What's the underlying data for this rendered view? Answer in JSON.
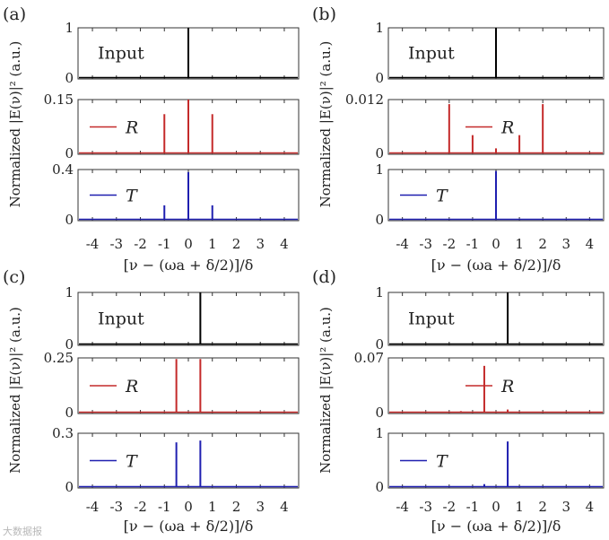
{
  "figure": {
    "y_axis_label": "Normalized |E(ν)|² (a.u.)",
    "x_axis_label": "[ν − (ωa + δ/2)]/δ",
    "x_ticks": [
      "-4",
      "-3",
      "-2",
      "-1",
      "0",
      "1",
      "2",
      "3",
      "4"
    ],
    "watermark": "大数据报",
    "colors": {
      "input": "#000000",
      "reflection": "#c42a2a",
      "transmission": "#1f1fb0"
    }
  },
  "chart_data": [
    {
      "type": "line",
      "panel": "(a)",
      "xlim": [
        -4.6,
        4.6
      ],
      "subplots": [
        {
          "name": "Input",
          "legend": "Input",
          "color": "#000000",
          "ylim": [
            0,
            1
          ],
          "yticks": [
            "1",
            "0"
          ],
          "peaks": [
            {
              "x": 0.0,
              "y": 1.0
            }
          ]
        },
        {
          "name": "R",
          "legend": "R",
          "color": "#c42a2a",
          "ylim": [
            0,
            0.15
          ],
          "yticks": [
            "0.15",
            "0"
          ],
          "peaks": [
            {
              "x": -2.0,
              "y": 0.004
            },
            {
              "x": -1.0,
              "y": 0.11
            },
            {
              "x": 0.0,
              "y": 0.15
            },
            {
              "x": 1.0,
              "y": 0.11
            },
            {
              "x": 2.0,
              "y": 0.004
            }
          ]
        },
        {
          "name": "T",
          "legend": "T",
          "color": "#1f1fb0",
          "ylim": [
            0,
            0.4
          ],
          "yticks": [
            "0.4",
            "0"
          ],
          "peaks": [
            {
              "x": -1.0,
              "y": 0.12
            },
            {
              "x": 0.0,
              "y": 0.38
            },
            {
              "x": 1.0,
              "y": 0.12
            }
          ]
        }
      ]
    },
    {
      "type": "line",
      "panel": "(b)",
      "xlim": [
        -4.6,
        4.6
      ],
      "subplots": [
        {
          "name": "Input",
          "legend": "Input",
          "color": "#000000",
          "ylim": [
            0,
            1
          ],
          "yticks": [
            "1",
            "0"
          ],
          "peaks": [
            {
              "x": 0.0,
              "y": 1.0
            }
          ]
        },
        {
          "name": "R",
          "legend": "R",
          "color": "#c42a2a",
          "ylim": [
            0,
            0.012
          ],
          "yticks": [
            "0.012",
            "0"
          ],
          "peaks": [
            {
              "x": -3.0,
              "y": 0.0005
            },
            {
              "x": -2.0,
              "y": 0.011
            },
            {
              "x": -1.0,
              "y": 0.0042
            },
            {
              "x": 0.0,
              "y": 0.0013
            },
            {
              "x": 1.0,
              "y": 0.0042
            },
            {
              "x": 2.0,
              "y": 0.011
            },
            {
              "x": 3.0,
              "y": 0.0005
            }
          ]
        },
        {
          "name": "T",
          "legend": "T",
          "color": "#1f1fb0",
          "ylim": [
            0,
            1
          ],
          "yticks": [
            "1",
            "0"
          ],
          "peaks": [
            {
              "x": 0.0,
              "y": 0.97
            }
          ]
        }
      ]
    },
    {
      "type": "line",
      "panel": "(c)",
      "xlim": [
        -4.6,
        4.6
      ],
      "subplots": [
        {
          "name": "Input",
          "legend": "Input",
          "color": "#000000",
          "ylim": [
            0,
            1
          ],
          "yticks": [
            "1",
            "0"
          ],
          "peaks": [
            {
              "x": 0.5,
              "y": 1.0
            }
          ]
        },
        {
          "name": "R",
          "legend": "R",
          "color": "#c42a2a",
          "ylim": [
            0,
            0.25
          ],
          "yticks": [
            "0.25",
            "0"
          ],
          "peaks": [
            {
              "x": -0.5,
              "y": 0.245
            },
            {
              "x": 0.5,
              "y": 0.245
            }
          ]
        },
        {
          "name": "T",
          "legend": "T",
          "color": "#1f1fb0",
          "ylim": [
            0,
            0.3
          ],
          "yticks": [
            "0.3",
            "0"
          ],
          "peaks": [
            {
              "x": -0.5,
              "y": 0.25
            },
            {
              "x": 0.5,
              "y": 0.26
            }
          ]
        }
      ]
    },
    {
      "type": "line",
      "panel": "(d)",
      "xlim": [
        -4.6,
        4.6
      ],
      "subplots": [
        {
          "name": "Input",
          "legend": "Input",
          "color": "#000000",
          "ylim": [
            0,
            1
          ],
          "yticks": [
            "1",
            "0"
          ],
          "peaks": [
            {
              "x": 0.5,
              "y": 1.0
            }
          ]
        },
        {
          "name": "R",
          "legend": "R",
          "color": "#c42a2a",
          "ylim": [
            0,
            0.07
          ],
          "yticks": [
            "0.07",
            "0"
          ],
          "peaks": [
            {
              "x": -1.5,
              "y": 0.003
            },
            {
              "x": -0.5,
              "y": 0.06
            },
            {
              "x": 0.5,
              "y": 0.005
            },
            {
              "x": 1.5,
              "y": 0.0015
            }
          ]
        },
        {
          "name": "T",
          "legend": "T",
          "color": "#1f1fb0",
          "ylim": [
            0,
            1
          ],
          "yticks": [
            "1",
            "0"
          ],
          "peaks": [
            {
              "x": -0.5,
              "y": 0.07
            },
            {
              "x": 0.5,
              "y": 0.85
            }
          ]
        }
      ]
    }
  ]
}
